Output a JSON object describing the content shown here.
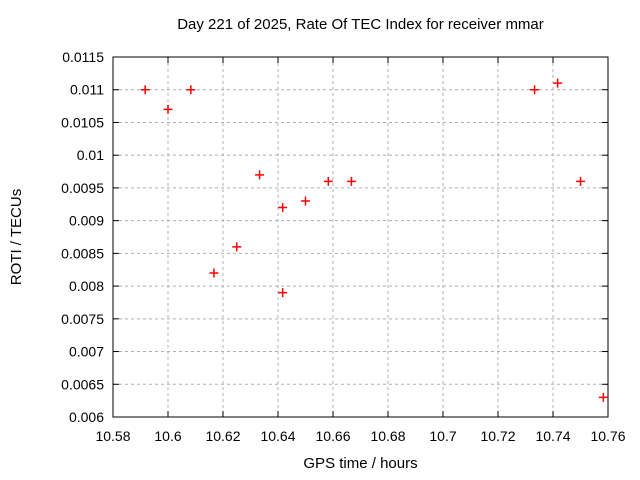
{
  "chart_data": {
    "type": "scatter",
    "title": "Day 221 of 2025, Rate Of TEC Index for receiver mmar",
    "xlabel": "GPS time / hours",
    "ylabel": "ROTI / TECUs",
    "xlim": [
      10.58,
      10.76
    ],
    "ylim": [
      0.006,
      0.0115
    ],
    "grid": true,
    "legend": "none",
    "xticks": [
      {
        "v": 10.58,
        "label": "10.58"
      },
      {
        "v": 10.6,
        "label": "10.6"
      },
      {
        "v": 10.62,
        "label": "10.62"
      },
      {
        "v": 10.64,
        "label": "10.64"
      },
      {
        "v": 10.66,
        "label": "10.66"
      },
      {
        "v": 10.68,
        "label": "10.68"
      },
      {
        "v": 10.7,
        "label": "10.7"
      },
      {
        "v": 10.72,
        "label": "10.72"
      },
      {
        "v": 10.74,
        "label": "10.74"
      },
      {
        "v": 10.76,
        "label": "10.76"
      }
    ],
    "yticks": [
      {
        "v": 0.006,
        "label": "0.006"
      },
      {
        "v": 0.0065,
        "label": "0.0065"
      },
      {
        "v": 0.007,
        "label": "0.007"
      },
      {
        "v": 0.0075,
        "label": "0.0075"
      },
      {
        "v": 0.008,
        "label": "0.008"
      },
      {
        "v": 0.0085,
        "label": "0.0085"
      },
      {
        "v": 0.009,
        "label": "0.009"
      },
      {
        "v": 0.0095,
        "label": "0.0095"
      },
      {
        "v": 0.01,
        "label": "0.01"
      },
      {
        "v": 0.0105,
        "label": "0.0105"
      },
      {
        "v": 0.011,
        "label": "0.011"
      },
      {
        "v": 0.0115,
        "label": "0.0115"
      }
    ],
    "points": [
      [
        10.5917,
        0.011
      ],
      [
        10.6,
        0.0107
      ],
      [
        10.6083,
        0.011
      ],
      [
        10.6167,
        0.0082
      ],
      [
        10.625,
        0.0086
      ],
      [
        10.6333,
        0.0097
      ],
      [
        10.6417,
        0.0092
      ],
      [
        10.6417,
        0.0079
      ],
      [
        10.65,
        0.0093
      ],
      [
        10.6583,
        0.0096
      ],
      [
        10.6667,
        0.0096
      ],
      [
        10.7333,
        0.011
      ],
      [
        10.7417,
        0.0111
      ],
      [
        10.75,
        0.0096
      ],
      [
        10.7583,
        0.0063
      ]
    ],
    "marker": {
      "shape": "plus",
      "color": "#ff0000",
      "size": 9,
      "stroke_width": 1.5
    },
    "colors": {
      "background": "#ffffff",
      "border": "#000000",
      "grid": "#b0b0b0",
      "text": "#000000"
    }
  }
}
